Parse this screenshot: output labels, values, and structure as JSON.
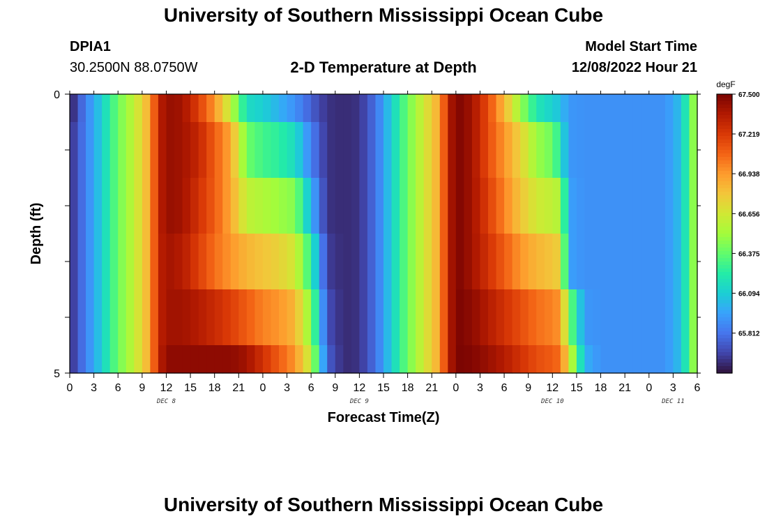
{
  "header": {
    "title": "University of Southern Mississippi Ocean Cube",
    "station_id": "DPIA1",
    "station_coords": "30.2500N  88.0750W",
    "plot_title": "2-D Temperature at Depth",
    "model_start_label": "Model Start Time",
    "model_start_value": "12/08/2022 Hour 21"
  },
  "footer": {
    "title": "University of Southern Mississippi Ocean Cube"
  },
  "chart_data": {
    "type": "heatmap",
    "title": "2-D Temperature at Depth",
    "xlabel": "Forecast Time(Z)",
    "ylabel": "Depth (ft)",
    "units": "degF",
    "x_hours_from_start": [
      0,
      78
    ],
    "x_tick_labels": [
      "0",
      "3",
      "6",
      "9",
      "12",
      "15",
      "18",
      "21",
      "0",
      "3",
      "6",
      "9",
      "12",
      "15",
      "18",
      "21",
      "0",
      "3",
      "6",
      "9",
      "12",
      "15",
      "18",
      "21",
      "0",
      "3",
      "6"
    ],
    "date_labels": [
      {
        "label": "DEC 8",
        "hour": 12
      },
      {
        "label": "DEC 9",
        "hour": 36
      },
      {
        "label": "DEC 10",
        "hour": 60
      },
      {
        "label": "DEC 11",
        "hour": 75
      }
    ],
    "depth_ticks": [
      0,
      1,
      2,
      3,
      4,
      5
    ],
    "depth_tick_labels": [
      "0",
      "5"
    ],
    "depth_range_ft": [
      0,
      5
    ],
    "depth_layers": [
      {
        "from": 0,
        "to": 0.5
      },
      {
        "from": 0.5,
        "to": 1.5
      },
      {
        "from": 1.5,
        "to": 2.5
      },
      {
        "from": 2.5,
        "to": 3.5
      },
      {
        "from": 3.5,
        "to": 4.5
      },
      {
        "from": 4.5,
        "to": 5
      }
    ],
    "temperature_profile": {
      "times": [
        0,
        2,
        4,
        6,
        8,
        10,
        11,
        12,
        14,
        16,
        18,
        20,
        22,
        24,
        26,
        28,
        30,
        32,
        34,
        36,
        38,
        40,
        42,
        44,
        46,
        47,
        48,
        50,
        52,
        54,
        56,
        58,
        60,
        61,
        62,
        64,
        66,
        68,
        70,
        72,
        74,
        76,
        78
      ],
      "layers": [
        [
          65.55,
          65.85,
          66.1,
          66.4,
          66.6,
          66.9,
          67.3,
          67.43,
          67.4,
          67.2,
          66.95,
          66.6,
          66.15,
          66.1,
          66.0,
          65.9,
          65.75,
          65.62,
          65.6,
          65.62,
          65.8,
          66.1,
          66.4,
          66.65,
          66.9,
          67.3,
          67.5,
          67.4,
          67.15,
          66.85,
          66.5,
          66.2,
          66.1,
          66.05,
          65.92,
          65.9,
          65.9,
          65.9,
          65.9,
          65.9,
          65.9,
          66.05,
          66.6
        ],
        [
          65.6,
          65.85,
          66.1,
          66.4,
          66.6,
          66.9,
          67.3,
          67.43,
          67.4,
          67.3,
          67.1,
          66.9,
          66.4,
          66.3,
          66.25,
          66.15,
          65.85,
          65.62,
          65.6,
          65.62,
          65.8,
          66.1,
          66.4,
          66.65,
          66.9,
          67.3,
          67.5,
          67.4,
          67.15,
          66.95,
          66.75,
          66.5,
          66.4,
          66.2,
          65.92,
          65.9,
          65.9,
          65.9,
          65.9,
          65.9,
          65.9,
          66.05,
          66.6
        ],
        [
          65.6,
          65.85,
          66.1,
          66.4,
          66.6,
          66.9,
          67.3,
          67.43,
          67.4,
          67.25,
          67.1,
          66.9,
          66.6,
          66.55,
          66.5,
          66.45,
          66.0,
          65.62,
          65.6,
          65.62,
          65.8,
          66.1,
          66.4,
          66.65,
          66.9,
          67.3,
          67.5,
          67.4,
          67.2,
          67.0,
          66.8,
          66.65,
          66.6,
          66.55,
          65.95,
          65.9,
          65.9,
          65.9,
          65.9,
          65.9,
          65.9,
          66.05,
          66.6
        ],
        [
          65.6,
          65.85,
          66.1,
          66.4,
          66.6,
          66.9,
          67.3,
          67.4,
          67.35,
          67.2,
          67.05,
          66.95,
          66.85,
          66.8,
          66.75,
          66.65,
          66.25,
          65.65,
          65.6,
          65.62,
          65.8,
          66.1,
          66.4,
          66.65,
          66.9,
          67.3,
          67.5,
          67.4,
          67.25,
          67.1,
          66.95,
          66.85,
          66.8,
          66.75,
          65.95,
          65.9,
          65.9,
          65.9,
          65.9,
          65.9,
          65.9,
          66.05,
          66.6
        ],
        [
          65.6,
          65.85,
          66.1,
          66.4,
          66.6,
          66.9,
          67.3,
          67.4,
          67.4,
          67.35,
          67.28,
          67.2,
          67.1,
          67.0,
          66.95,
          66.85,
          66.45,
          65.7,
          65.6,
          65.62,
          65.8,
          66.1,
          66.4,
          66.65,
          66.9,
          67.3,
          67.5,
          67.45,
          67.35,
          67.25,
          67.15,
          67.05,
          67.0,
          66.95,
          66.45,
          65.92,
          65.9,
          65.9,
          65.9,
          65.9,
          65.9,
          66.05,
          66.6
        ],
        [
          65.6,
          65.85,
          66.1,
          66.4,
          66.6,
          66.9,
          67.3,
          67.45,
          67.45,
          67.45,
          67.45,
          67.45,
          67.4,
          67.25,
          67.1,
          66.95,
          66.6,
          65.75,
          65.6,
          65.62,
          65.8,
          66.1,
          66.4,
          66.65,
          66.9,
          67.3,
          67.5,
          67.48,
          67.42,
          67.35,
          67.25,
          67.15,
          67.1,
          67.05,
          66.7,
          66.0,
          65.9,
          65.9,
          65.9,
          65.9,
          65.9,
          66.05,
          66.6
        ]
      ]
    },
    "colorbar": {
      "label": "degF",
      "min": 65.53,
      "max": 67.5,
      "tick_labels": [
        "67.500",
        "67.219",
        "66.938",
        "66.656",
        "66.375",
        "66.094",
        "65.812"
      ],
      "tick_values": [
        67.5,
        67.219,
        66.938,
        66.656,
        66.375,
        66.094,
        65.812
      ],
      "colormap": [
        "#30123b",
        "#4145ab",
        "#4675ed",
        "#39a2fc",
        "#1bcfd4",
        "#24eca6",
        "#61fc6c",
        "#a4fc3b",
        "#d1e834",
        "#f3c63a",
        "#fe9b2d",
        "#f36315",
        "#d93806",
        "#b11901",
        "#7a0402"
      ]
    }
  }
}
